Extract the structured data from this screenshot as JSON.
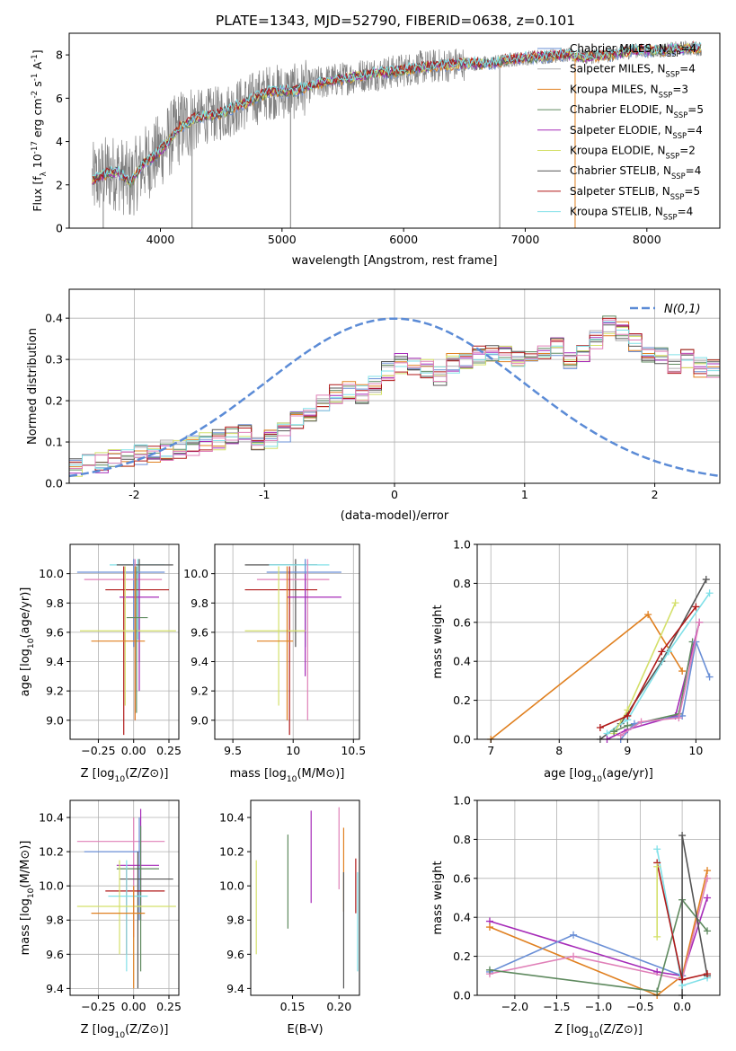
{
  "figure_title": "PLATE=1343, MJD=52790, FIBERID=0638, z=0.101",
  "chart_data": [
    {
      "type": "line",
      "id": "spectrum",
      "xlabel": "wavelength [Angstrom, rest frame]",
      "ylabel": "Flux [f_λ 10^-17 erg cm^-2 s^-1 A^-1]",
      "xlim": [
        3250,
        8600
      ],
      "ylim": [
        0,
        9
      ],
      "xticks": [
        4000,
        5000,
        6000,
        7000,
        8000
      ],
      "yticks": [
        0,
        2,
        4,
        6,
        8
      ],
      "grid": false,
      "legend": "top-right",
      "series": [
        {
          "name": "Chabrier MILES, N_SSP=4",
          "color": "#6a8fd6"
        },
        {
          "name": "Salpeter MILES, N_SSP=4",
          "color": "#b0aeb0"
        },
        {
          "name": "Kroupa MILES, N_SSP=3",
          "color": "#e08020"
        },
        {
          "name": "Chabrier ELODIE, N_SSP=5",
          "color": "#5f8a5f"
        },
        {
          "name": "Salpeter ELODIE, N_SSP=4",
          "color": "#a62bb8"
        },
        {
          "name": "Kroupa ELODIE, N_SSP=2",
          "color": "#d4e06a"
        },
        {
          "name": "Chabrier STELIB, N_SSP=4",
          "color": "#555555"
        },
        {
          "name": "Salpeter STELIB, N_SSP=5",
          "color": "#b01818"
        },
        {
          "name": "Kroupa STELIB, N_SSP=4",
          "color": "#80e0e8"
        }
      ],
      "model_curve": {
        "x": [
          3450,
          3550,
          3650,
          3750,
          3850,
          3950,
          4050,
          4150,
          4300,
          4500,
          4700,
          4900,
          5100,
          5300,
          5500,
          5700,
          5900,
          6100,
          6300,
          6500,
          6700,
          6900,
          7100,
          7300,
          7500,
          7700,
          7900,
          8100,
          8300,
          8450
        ],
        "y": [
          2.2,
          2.5,
          2.6,
          2.1,
          2.9,
          3.3,
          3.9,
          4.6,
          5.1,
          5.3,
          5.8,
          6.3,
          6.3,
          6.7,
          6.9,
          7.1,
          7.2,
          7.4,
          7.5,
          7.6,
          7.6,
          7.8,
          7.9,
          8.0,
          7.9,
          8.0,
          8.2,
          8.2,
          8.3,
          8.3
        ]
      },
      "data_color": "#808080"
    },
    {
      "type": "bar",
      "id": "residual_hist",
      "xlabel": "(data-model)/error",
      "ylabel": "Normed distribution",
      "xlim": [
        -2.5,
        2.5
      ],
      "ylim": [
        0,
        0.47
      ],
      "xticks": [
        -2,
        -1,
        0,
        1,
        2
      ],
      "yticks": [
        0.0,
        0.1,
        0.2,
        0.3,
        0.4
      ],
      "grid": true,
      "legend": "top-right",
      "legend_label": "N(0,1)",
      "reference_curve": {
        "name": "N(0,1)",
        "mu": 0,
        "sigma": 1,
        "color": "#5b8bd6"
      },
      "bin_width": 0.1,
      "envelope": [
        0.04,
        0.045,
        0.05,
        0.06,
        0.065,
        0.07,
        0.075,
        0.08,
        0.085,
        0.09,
        0.1,
        0.105,
        0.115,
        0.12,
        0.1,
        0.105,
        0.125,
        0.15,
        0.17,
        0.19,
        0.215,
        0.225,
        0.215,
        0.24,
        0.27,
        0.29,
        0.28,
        0.28,
        0.26,
        0.29,
        0.3,
        0.31,
        0.32,
        0.31,
        0.3,
        0.3,
        0.32,
        0.33,
        0.3,
        0.31,
        0.35,
        0.38,
        0.37,
        0.34,
        0.31,
        0.31,
        0.29,
        0.3,
        0.28,
        0.275,
        0.27,
        0.28,
        0.255,
        0.25,
        0.235,
        0.22,
        0.2,
        0.185,
        0.17,
        0.165,
        0.155,
        0.14,
        0.115,
        0.105,
        0.095,
        0.09,
        0.085,
        0.075,
        0.07,
        0.065,
        0.06,
        0.06,
        0.055,
        0.055,
        0.055,
        0.05,
        0.05,
        0.05,
        0.045,
        0.045,
        0.045,
        0.04,
        0.04,
        0.04,
        0.04,
        0.04,
        0.04,
        0.04,
        0.04,
        0.04,
        0.04,
        0.04,
        0.04,
        0.04,
        0.04,
        0.04,
        0.04,
        0.04,
        0.04,
        0.04
      ]
    },
    {
      "type": "scatter",
      "id": "age_vs_Z",
      "xlabel": "Z [log10(Z/Z⊙)]",
      "ylabel": "age [log10(age/yr)]",
      "xlim": [
        -0.45,
        0.32
      ],
      "ylim": [
        8.87,
        10.2
      ],
      "xticks": [
        -0.25,
        0.0,
        0.25
      ],
      "xticklabels": [
        "−0.25",
        "0.00",
        "0.25"
      ],
      "yticks": [
        9.0,
        9.2,
        9.4,
        9.6,
        9.8,
        10.0
      ],
      "grid": true,
      "points": [
        {
          "x": 0.03,
          "y": 10.06,
          "xlo": -0.17,
          "xhi": 0.22,
          "ylo": 9.55,
          "yhi": 10.1,
          "color": "#80e0e8"
        },
        {
          "x": 0.04,
          "y": 10.06,
          "xlo": -0.12,
          "xhi": 0.28,
          "ylo": 9.4,
          "yhi": 10.1,
          "color": "#555555"
        },
        {
          "x": 0.0,
          "y": 10.01,
          "xlo": -0.4,
          "xhi": 0.22,
          "ylo": 9.5,
          "yhi": 10.1,
          "color": "#6a8fd6"
        },
        {
          "x": 0.01,
          "y": 9.96,
          "xlo": -0.35,
          "xhi": 0.2,
          "ylo": 9.0,
          "yhi": 10.1,
          "color": "#e080b8"
        },
        {
          "x": -0.07,
          "y": 9.89,
          "xlo": -0.2,
          "xhi": 0.25,
          "ylo": 8.9,
          "yhi": 10.05,
          "color": "#b01818"
        },
        {
          "x": 0.04,
          "y": 9.84,
          "xlo": -0.1,
          "xhi": 0.18,
          "ylo": 9.2,
          "yhi": 10.0,
          "color": "#a62bb8"
        },
        {
          "x": -0.06,
          "y": 9.61,
          "xlo": -0.38,
          "xhi": 0.3,
          "ylo": 9.1,
          "yhi": 10.05,
          "color": "#d4e06a"
        },
        {
          "x": 0.01,
          "y": 9.54,
          "xlo": -0.3,
          "xhi": 0.08,
          "ylo": 9.0,
          "yhi": 10.05,
          "color": "#e08020"
        },
        {
          "x": 0.02,
          "y": 9.7,
          "xlo": -0.05,
          "xhi": 0.1,
          "ylo": 9.05,
          "yhi": 10.05,
          "color": "#5f8a5f"
        }
      ]
    },
    {
      "type": "scatter",
      "id": "age_vs_mass",
      "xlabel": "mass [log10(M/M⊙)]",
      "ylabel": "",
      "xlim": [
        9.35,
        10.55
      ],
      "ylim": [
        8.87,
        10.2
      ],
      "xticks": [
        9.5,
        10.0,
        10.5
      ],
      "yticks": [
        9.0,
        9.2,
        9.4,
        9.6,
        9.8,
        10.0
      ],
      "grid": true,
      "points": [
        {
          "x": 10.02,
          "y": 10.06,
          "xlo": 9.6,
          "xhi": 10.2,
          "ylo": 9.5,
          "yhi": 10.1,
          "color": "#555555"
        },
        {
          "x": 10.1,
          "y": 10.06,
          "xlo": 9.8,
          "xhi": 10.3,
          "ylo": 9.5,
          "yhi": 10.1,
          "color": "#80e0e8"
        },
        {
          "x": 10.1,
          "y": 10.01,
          "xlo": 9.78,
          "xhi": 10.4,
          "ylo": 9.5,
          "yhi": 10.1,
          "color": "#6a8fd6"
        },
        {
          "x": 10.12,
          "y": 9.96,
          "xlo": 9.7,
          "xhi": 10.3,
          "ylo": 9.0,
          "yhi": 10.1,
          "color": "#e080b8"
        },
        {
          "x": 9.97,
          "y": 9.89,
          "xlo": 9.6,
          "xhi": 10.2,
          "ylo": 8.9,
          "yhi": 10.05,
          "color": "#b01818"
        },
        {
          "x": 10.1,
          "y": 9.84,
          "xlo": 9.95,
          "xhi": 10.4,
          "ylo": 9.3,
          "yhi": 10.0,
          "color": "#a62bb8"
        },
        {
          "x": 9.88,
          "y": 9.61,
          "xlo": 9.6,
          "xhi": 10.1,
          "ylo": 9.1,
          "yhi": 10.05,
          "color": "#d4e06a"
        },
        {
          "x": 9.95,
          "y": 9.54,
          "xlo": 9.7,
          "xhi": 10.0,
          "ylo": 9.0,
          "yhi": 10.05,
          "color": "#e08020"
        }
      ]
    },
    {
      "type": "line",
      "id": "mass_weight_vs_age",
      "xlabel": "age [log10(age/yr)]",
      "ylabel": "mass weight",
      "xlim": [
        6.8,
        10.35
      ],
      "ylim": [
        0,
        1
      ],
      "xticks": [
        7,
        8,
        9,
        10
      ],
      "yticks": [
        0.0,
        0.2,
        0.4,
        0.6,
        0.8,
        1.0
      ],
      "grid": true,
      "series": [
        {
          "color": "#e08020",
          "x": [
            7.0,
            9.3,
            9.8
          ],
          "y": [
            0.0,
            0.64,
            0.35
          ]
        },
        {
          "color": "#555555",
          "x": [
            8.6,
            8.9,
            9.5,
            10.15
          ],
          "y": [
            0.0,
            0.08,
            0.4,
            0.82
          ]
        },
        {
          "color": "#80e0e8",
          "x": [
            8.7,
            9.0,
            9.6,
            10.2
          ],
          "y": [
            0.03,
            0.1,
            0.45,
            0.75
          ]
        },
        {
          "color": "#d4e06a",
          "x": [
            8.8,
            9.0,
            9.7
          ],
          "y": [
            0.03,
            0.15,
            0.7
          ]
        },
        {
          "color": "#b01818",
          "x": [
            8.6,
            9.0,
            9.5,
            10.0
          ],
          "y": [
            0.06,
            0.12,
            0.45,
            0.68
          ]
        },
        {
          "color": "#a62bb8",
          "x": [
            8.7,
            9.0,
            9.7,
            10.05
          ],
          "y": [
            0.0,
            0.05,
            0.12,
            0.6
          ]
        },
        {
          "color": "#5f8a5f",
          "x": [
            8.8,
            9.0,
            9.75,
            9.95
          ],
          "y": [
            0.04,
            0.07,
            0.13,
            0.5
          ]
        },
        {
          "color": "#6a8fd6",
          "x": [
            8.9,
            9.1,
            9.8,
            10.0,
            10.2
          ],
          "y": [
            0.0,
            0.08,
            0.12,
            0.5,
            0.32
          ]
        },
        {
          "color": "#e080b8",
          "x": [
            8.9,
            9.2,
            9.75,
            10.05
          ],
          "y": [
            0.02,
            0.09,
            0.11,
            0.6
          ]
        }
      ]
    },
    {
      "type": "scatter",
      "id": "mass_vs_Z",
      "xlabel": "Z [log10(Z/Z⊙)]",
      "ylabel": "mass [log10(M/M⊙)]",
      "xlim": [
        -0.45,
        0.32
      ],
      "ylim": [
        9.36,
        10.5
      ],
      "xticks": [
        -0.25,
        0.0,
        0.25
      ],
      "xticklabels": [
        "−0.25",
        "0.00",
        "0.25"
      ],
      "yticks": [
        9.4,
        9.6,
        9.8,
        10.0,
        10.2,
        10.4
      ],
      "grid": true,
      "points": [
        {
          "x": 0.0,
          "y": 10.26,
          "xlo": -0.4,
          "xhi": 0.22,
          "ylo": 9.7,
          "yhi": 10.4,
          "color": "#e080b8"
        },
        {
          "x": 0.04,
          "y": 10.2,
          "xlo": -0.35,
          "xhi": 0.05,
          "ylo": 9.8,
          "yhi": 10.4,
          "color": "#6a8fd6"
        },
        {
          "x": 0.05,
          "y": 10.12,
          "xlo": -0.12,
          "xhi": 0.18,
          "ylo": 9.8,
          "yhi": 10.45,
          "color": "#a62bb8"
        },
        {
          "x": 0.05,
          "y": 10.1,
          "xlo": -0.12,
          "xhi": 0.18,
          "ylo": 9.5,
          "yhi": 10.35,
          "color": "#5f8a5f"
        },
        {
          "x": 0.03,
          "y": 10.04,
          "xlo": -0.1,
          "xhi": 0.28,
          "ylo": 9.4,
          "yhi": 10.2,
          "color": "#555555"
        },
        {
          "x": -0.05,
          "y": 9.97,
          "xlo": -0.2,
          "xhi": 0.22,
          "ylo": 9.6,
          "yhi": 10.1,
          "color": "#b01818"
        },
        {
          "x": -0.05,
          "y": 9.94,
          "xlo": -0.18,
          "xhi": 0.1,
          "ylo": 9.5,
          "yhi": 10.15,
          "color": "#80e0e8"
        },
        {
          "x": -0.1,
          "y": 9.88,
          "xlo": -0.4,
          "xhi": 0.3,
          "ylo": 9.6,
          "yhi": 10.15,
          "color": "#d4e06a"
        },
        {
          "x": 0.0,
          "y": 9.84,
          "xlo": -0.3,
          "xhi": 0.08,
          "ylo": 9.4,
          "yhi": 10.0,
          "color": "#e08020"
        }
      ]
    },
    {
      "type": "scatter",
      "id": "mass_vs_ebv",
      "xlabel": "E(B-V)",
      "ylabel": "",
      "xlim": [
        0.105,
        0.222
      ],
      "ylim": [
        9.36,
        10.5
      ],
      "xticks": [
        0.15,
        0.2
      ],
      "xticklabels": [
        "0.15",
        "0.20"
      ],
      "yticks": [
        9.4,
        9.6,
        9.8,
        10.0,
        10.2,
        10.4
      ],
      "grid": false,
      "points": [
        {
          "x": 0.111,
          "y": 9.88,
          "ylo": 9.6,
          "yhi": 10.15,
          "color": "#d4e06a"
        },
        {
          "x": 0.145,
          "y": 10.02,
          "ylo": 9.75,
          "yhi": 10.3,
          "color": "#5f8a5f"
        },
        {
          "x": 0.17,
          "y": 10.17,
          "ylo": 9.9,
          "yhi": 10.44,
          "color": "#a62bb8"
        },
        {
          "x": 0.2,
          "y": 10.2,
          "ylo": 9.98,
          "yhi": 10.46,
          "color": "#e080b8"
        },
        {
          "x": 0.205,
          "y": 10.1,
          "ylo": 9.85,
          "yhi": 10.34,
          "color": "#e08020"
        },
        {
          "x": 0.205,
          "y": 9.75,
          "ylo": 9.4,
          "yhi": 10.08,
          "color": "#555555"
        },
        {
          "x": 0.218,
          "y": 10.0,
          "ylo": 9.84,
          "yhi": 10.16,
          "color": "#b01818"
        },
        {
          "x": 0.22,
          "y": 9.8,
          "ylo": 9.5,
          "yhi": 10.08,
          "color": "#80e0e8"
        }
      ]
    },
    {
      "type": "line",
      "id": "mass_weight_vs_Z",
      "xlabel": "Z [log10(Z/Z⊙)]",
      "ylabel": "mass weight",
      "xlim": [
        -2.45,
        0.45
      ],
      "ylim": [
        0,
        1
      ],
      "xticks": [
        -2.0,
        -1.5,
        -1.0,
        -0.5,
        0.0
      ],
      "xticklabels": [
        "−2.0",
        "−1.5",
        "−1.0",
        "−0.5",
        "0.0"
      ],
      "yticks": [
        0.0,
        0.2,
        0.4,
        0.6,
        0.8,
        1.0
      ],
      "grid": true,
      "series": [
        {
          "color": "#a62bb8",
          "x": [
            -2.3,
            -0.3,
            0.0,
            0.3
          ],
          "y": [
            0.38,
            0.12,
            0.1,
            0.5
          ]
        },
        {
          "color": "#e08020",
          "x": [
            -2.3,
            -0.3,
            0.0,
            0.3
          ],
          "y": [
            0.35,
            0.0,
            0.1,
            0.64
          ]
        },
        {
          "color": "#6a8fd6",
          "x": [
            -2.3,
            -1.3,
            0.0
          ],
          "y": [
            0.12,
            0.31,
            0.1
          ]
        },
        {
          "color": "#e080b8",
          "x": [
            -2.3,
            -1.3,
            0.0,
            0.3
          ],
          "y": [
            0.11,
            0.2,
            0.08,
            0.6
          ]
        },
        {
          "color": "#5f8a5f",
          "x": [
            -2.3,
            -0.3,
            0.0,
            0.3
          ],
          "y": [
            0.13,
            0.02,
            0.49,
            0.33
          ]
        },
        {
          "color": "#555555",
          "x": [
            0.0,
            0.0,
            0.3
          ],
          "y": [
            0.0,
            0.82,
            0.1
          ]
        },
        {
          "color": "#80e0e8",
          "x": [
            -0.3,
            0.0,
            0.3
          ],
          "y": [
            0.75,
            0.05,
            0.09
          ]
        },
        {
          "color": "#b01818",
          "x": [
            -0.3,
            0.0,
            0.3
          ],
          "y": [
            0.68,
            0.08,
            0.11
          ]
        },
        {
          "color": "#d4e06a",
          "x": [
            -0.3,
            -0.3
          ],
          "y": [
            0.3,
            0.66
          ]
        }
      ]
    }
  ]
}
